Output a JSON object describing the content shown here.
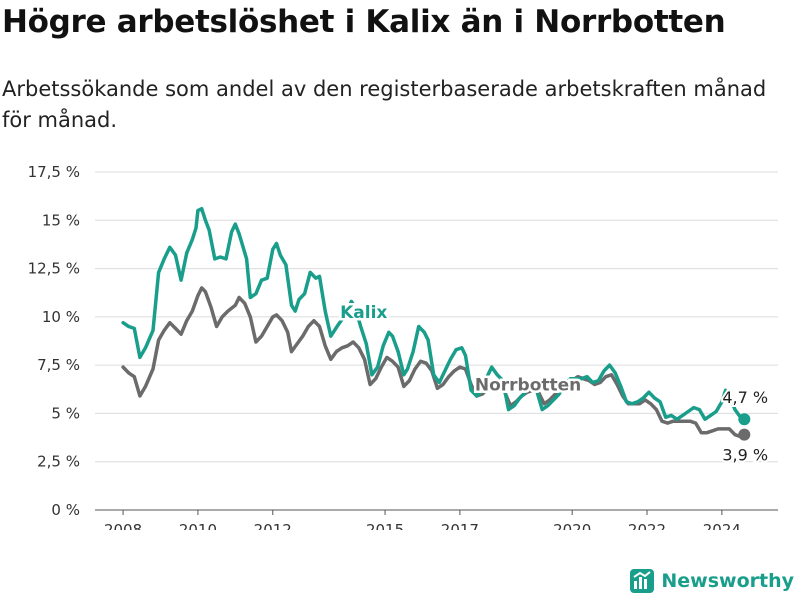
{
  "title": "Högre arbetslöshet i Kalix än i Norrbotten",
  "subtitle": "Arbetssökande som andel av den registerbaserade arbetskraften månad för månad.",
  "brand": {
    "name": "Newsworthy",
    "icon": "newsworthy-logo-icon",
    "color": "#1a9e8c"
  },
  "chart_data": {
    "type": "line",
    "y_tick_labels": [
      "0 %",
      "2,5 %",
      "5 %",
      "7,5 %",
      "10 %",
      "12,5 %",
      "15 %",
      "17,5 %"
    ],
    "y_ticks": [
      0,
      2.5,
      5,
      7.5,
      10,
      12.5,
      15,
      17.5
    ],
    "x_tick_labels": [
      "2008",
      "2010",
      "2012",
      "2015",
      "2017",
      "2020",
      "2022",
      "2024"
    ],
    "x_ticks": [
      2008,
      2010,
      2012,
      2015,
      2017,
      2020,
      2022,
      2024
    ],
    "ylim": [
      0,
      17.5
    ],
    "xlim": [
      2007.25,
      2025.5
    ],
    "grid": true,
    "series": [
      {
        "name": "Kalix",
        "color": "#1a9e8c",
        "end_label": "4,7 %",
        "points": [
          [
            2008.0,
            9.7
          ],
          [
            2008.15,
            9.5
          ],
          [
            2008.3,
            9.4
          ],
          [
            2008.45,
            7.9
          ],
          [
            2008.6,
            8.4
          ],
          [
            2008.8,
            9.3
          ],
          [
            2008.95,
            12.3
          ],
          [
            2009.1,
            13.0
          ],
          [
            2009.25,
            13.6
          ],
          [
            2009.4,
            13.2
          ],
          [
            2009.55,
            11.9
          ],
          [
            2009.7,
            13.3
          ],
          [
            2009.85,
            14.0
          ],
          [
            2009.95,
            14.6
          ],
          [
            2010.0,
            15.5
          ],
          [
            2010.1,
            15.6
          ],
          [
            2010.2,
            15.0
          ],
          [
            2010.3,
            14.5
          ],
          [
            2010.45,
            13.0
          ],
          [
            2010.6,
            13.1
          ],
          [
            2010.75,
            13.0
          ],
          [
            2010.9,
            14.4
          ],
          [
            2011.0,
            14.8
          ],
          [
            2011.1,
            14.3
          ],
          [
            2011.3,
            13.0
          ],
          [
            2011.4,
            11.0
          ],
          [
            2011.55,
            11.2
          ],
          [
            2011.7,
            11.9
          ],
          [
            2011.85,
            12.0
          ],
          [
            2012.0,
            13.5
          ],
          [
            2012.1,
            13.8
          ],
          [
            2012.2,
            13.2
          ],
          [
            2012.35,
            12.7
          ],
          [
            2012.5,
            10.6
          ],
          [
            2012.6,
            10.3
          ],
          [
            2012.7,
            10.9
          ],
          [
            2012.85,
            11.2
          ],
          [
            2013.0,
            12.3
          ],
          [
            2013.15,
            12.0
          ],
          [
            2013.25,
            12.1
          ],
          [
            2013.4,
            10.3
          ],
          [
            2013.55,
            9.0
          ],
          [
            2013.75,
            9.6
          ],
          [
            2013.9,
            10.0
          ],
          [
            2014.1,
            10.8
          ],
          [
            2014.2,
            10.5
          ],
          [
            2014.35,
            9.5
          ],
          [
            2014.5,
            8.6
          ],
          [
            2014.65,
            7.0
          ],
          [
            2014.8,
            7.4
          ],
          [
            2014.95,
            8.5
          ],
          [
            2015.1,
            9.2
          ],
          [
            2015.2,
            9.0
          ],
          [
            2015.35,
            8.2
          ],
          [
            2015.5,
            7.0
          ],
          [
            2015.6,
            7.3
          ],
          [
            2015.75,
            8.2
          ],
          [
            2015.9,
            9.5
          ],
          [
            2016.05,
            9.2
          ],
          [
            2016.15,
            8.8
          ],
          [
            2016.3,
            7.0
          ],
          [
            2016.45,
            6.6
          ],
          [
            2016.6,
            7.2
          ],
          [
            2016.75,
            7.8
          ],
          [
            2016.9,
            8.3
          ],
          [
            2017.05,
            8.4
          ],
          [
            2017.15,
            8.0
          ],
          [
            2017.3,
            6.2
          ],
          [
            2017.45,
            5.9
          ],
          [
            2017.55,
            6.1
          ],
          [
            2017.7,
            6.8
          ],
          [
            2017.85,
            7.4
          ],
          [
            2018.0,
            7.0
          ],
          [
            2018.15,
            6.7
          ],
          [
            2018.3,
            5.2
          ],
          [
            2018.45,
            5.4
          ],
          [
            2018.6,
            5.8
          ],
          [
            2018.75,
            6.1
          ],
          [
            2018.9,
            6.4
          ],
          [
            2019.05,
            6.2
          ],
          [
            2019.2,
            5.2
          ],
          [
            2019.35,
            5.4
          ],
          [
            2019.5,
            5.7
          ],
          [
            2019.65,
            6.0
          ],
          [
            2019.8,
            6.5
          ],
          [
            2019.95,
            6.8
          ],
          [
            2020.1,
            6.8
          ],
          [
            2020.25,
            6.8
          ],
          [
            2020.4,
            6.9
          ],
          [
            2020.55,
            6.6
          ],
          [
            2020.7,
            6.7
          ],
          [
            2020.85,
            7.2
          ],
          [
            2021.0,
            7.5
          ],
          [
            2021.15,
            7.1
          ],
          [
            2021.3,
            6.4
          ],
          [
            2021.45,
            5.6
          ],
          [
            2021.6,
            5.5
          ],
          [
            2021.75,
            5.6
          ],
          [
            2021.9,
            5.8
          ],
          [
            2022.05,
            6.1
          ],
          [
            2022.2,
            5.8
          ],
          [
            2022.35,
            5.6
          ],
          [
            2022.5,
            4.8
          ],
          [
            2022.65,
            4.9
          ],
          [
            2022.8,
            4.7
          ],
          [
            2022.95,
            4.9
          ],
          [
            2023.1,
            5.1
          ],
          [
            2023.25,
            5.3
          ],
          [
            2023.4,
            5.2
          ],
          [
            2023.55,
            4.7
          ],
          [
            2023.7,
            4.9
          ],
          [
            2023.85,
            5.1
          ],
          [
            2024.0,
            5.6
          ],
          [
            2024.1,
            6.2
          ],
          [
            2024.2,
            5.9
          ],
          [
            2024.35,
            5.2
          ],
          [
            2024.5,
            4.8
          ],
          [
            2024.6,
            4.7
          ]
        ]
      },
      {
        "name": "Norrbotten",
        "color": "#6b6b6b",
        "end_label": "3,9 %",
        "points": [
          [
            2008.0,
            7.4
          ],
          [
            2008.15,
            7.1
          ],
          [
            2008.3,
            6.9
          ],
          [
            2008.45,
            5.9
          ],
          [
            2008.6,
            6.4
          ],
          [
            2008.8,
            7.3
          ],
          [
            2008.95,
            8.8
          ],
          [
            2009.1,
            9.3
          ],
          [
            2009.25,
            9.7
          ],
          [
            2009.4,
            9.4
          ],
          [
            2009.55,
            9.1
          ],
          [
            2009.7,
            9.8
          ],
          [
            2009.85,
            10.3
          ],
          [
            2010.0,
            11.1
          ],
          [
            2010.1,
            11.5
          ],
          [
            2010.2,
            11.3
          ],
          [
            2010.35,
            10.5
          ],
          [
            2010.5,
            9.5
          ],
          [
            2010.65,
            10.0
          ],
          [
            2010.8,
            10.3
          ],
          [
            2011.0,
            10.6
          ],
          [
            2011.1,
            11.0
          ],
          [
            2011.25,
            10.7
          ],
          [
            2011.4,
            10.0
          ],
          [
            2011.55,
            8.7
          ],
          [
            2011.7,
            9.0
          ],
          [
            2011.85,
            9.5
          ],
          [
            2012.0,
            10.0
          ],
          [
            2012.1,
            10.1
          ],
          [
            2012.25,
            9.8
          ],
          [
            2012.4,
            9.2
          ],
          [
            2012.5,
            8.2
          ],
          [
            2012.65,
            8.6
          ],
          [
            2012.8,
            9.0
          ],
          [
            2012.95,
            9.5
          ],
          [
            2013.1,
            9.8
          ],
          [
            2013.25,
            9.5
          ],
          [
            2013.4,
            8.5
          ],
          [
            2013.55,
            7.8
          ],
          [
            2013.7,
            8.2
          ],
          [
            2013.85,
            8.4
          ],
          [
            2014.0,
            8.5
          ],
          [
            2014.15,
            8.7
          ],
          [
            2014.3,
            8.4
          ],
          [
            2014.45,
            7.8
          ],
          [
            2014.6,
            6.5
          ],
          [
            2014.75,
            6.8
          ],
          [
            2014.9,
            7.4
          ],
          [
            2015.05,
            7.9
          ],
          [
            2015.2,
            7.7
          ],
          [
            2015.35,
            7.4
          ],
          [
            2015.5,
            6.4
          ],
          [
            2015.65,
            6.7
          ],
          [
            2015.8,
            7.3
          ],
          [
            2015.95,
            7.7
          ],
          [
            2016.1,
            7.6
          ],
          [
            2016.25,
            7.2
          ],
          [
            2016.4,
            6.3
          ],
          [
            2016.55,
            6.5
          ],
          [
            2016.7,
            6.9
          ],
          [
            2016.85,
            7.2
          ],
          [
            2017.0,
            7.4
          ],
          [
            2017.15,
            7.3
          ],
          [
            2017.3,
            6.5
          ],
          [
            2017.45,
            5.9
          ],
          [
            2017.6,
            6.0
          ],
          [
            2017.75,
            6.3
          ],
          [
            2017.9,
            6.6
          ],
          [
            2018.05,
            6.4
          ],
          [
            2018.2,
            6.1
          ],
          [
            2018.35,
            5.4
          ],
          [
            2018.5,
            5.6
          ],
          [
            2018.65,
            5.9
          ],
          [
            2018.8,
            6.1
          ],
          [
            2018.95,
            6.2
          ],
          [
            2019.1,
            6.1
          ],
          [
            2019.25,
            5.5
          ],
          [
            2019.4,
            5.7
          ],
          [
            2019.55,
            6.0
          ],
          [
            2019.7,
            6.3
          ],
          [
            2019.85,
            6.6
          ],
          [
            2020.0,
            6.7
          ],
          [
            2020.15,
            6.9
          ],
          [
            2020.3,
            6.8
          ],
          [
            2020.45,
            6.7
          ],
          [
            2020.6,
            6.5
          ],
          [
            2020.75,
            6.6
          ],
          [
            2020.9,
            6.9
          ],
          [
            2021.05,
            7.0
          ],
          [
            2021.2,
            6.5
          ],
          [
            2021.35,
            5.9
          ],
          [
            2021.5,
            5.5
          ],
          [
            2021.65,
            5.5
          ],
          [
            2021.8,
            5.5
          ],
          [
            2021.95,
            5.7
          ],
          [
            2022.1,
            5.5
          ],
          [
            2022.25,
            5.2
          ],
          [
            2022.4,
            4.6
          ],
          [
            2022.55,
            4.5
          ],
          [
            2022.7,
            4.6
          ],
          [
            2022.85,
            4.6
          ],
          [
            2023.0,
            4.6
          ],
          [
            2023.15,
            4.6
          ],
          [
            2023.3,
            4.5
          ],
          [
            2023.45,
            4.0
          ],
          [
            2023.6,
            4.0
          ],
          [
            2023.75,
            4.1
          ],
          [
            2023.9,
            4.2
          ],
          [
            2024.05,
            4.2
          ],
          [
            2024.2,
            4.2
          ],
          [
            2024.35,
            3.9
          ],
          [
            2024.5,
            3.8
          ],
          [
            2024.6,
            3.9
          ]
        ]
      }
    ]
  }
}
